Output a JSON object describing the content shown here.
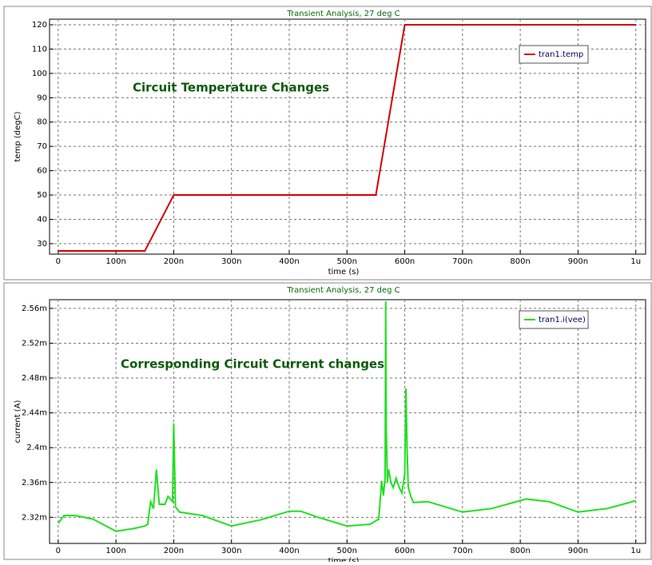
{
  "chart_data": [
    {
      "type": "line",
      "title": "Transient Analysis, 27 deg C",
      "annotation": "Circuit Temperature Changes",
      "xlabel": "time (s)",
      "ylabel": "temp (degC)",
      "grid": true,
      "legend": "upper-right",
      "xlim": [
        -1.5e-08,
        1.017e-06
      ],
      "ylim": [
        25.7,
        122.3
      ],
      "xticks": [
        0,
        {
          "value": 1e-07,
          "label": "100n"
        },
        {
          "value": 2e-07,
          "label": "200n"
        },
        {
          "value": 3e-07,
          "label": "300n"
        },
        {
          "value": 4e-07,
          "label": "400n"
        },
        {
          "value": 5e-07,
          "label": "500n"
        },
        {
          "value": 6e-07,
          "label": "600n"
        },
        {
          "value": 7e-07,
          "label": "700n"
        },
        {
          "value": 8e-07,
          "label": "800n"
        },
        {
          "value": 9e-07,
          "label": "900n"
        },
        {
          "value": 1e-06,
          "label": "1u"
        }
      ],
      "yticks": [
        30,
        40,
        50,
        60,
        70,
        80,
        90,
        100,
        110,
        120
      ],
      "x": [
        0,
        1.5e-07,
        2e-07,
        5.5e-07,
        6e-07,
        1e-06
      ],
      "series": [
        {
          "name": "tran1.temp",
          "color": "#d40000",
          "values": [
            27,
            27,
            50,
            50,
            120,
            120
          ]
        }
      ]
    },
    {
      "type": "line",
      "title": "Transient Analysis, 27 deg C",
      "annotation": "Corresponding Circuit Current changes",
      "xlabel": "time (s)",
      "ylabel": "current (A)",
      "grid": true,
      "legend": "upper-right",
      "xlim": [
        -1.5e-08,
        1.017e-06
      ],
      "ylim": [
        0.00229,
        0.00257
      ],
      "xticks": [
        0,
        {
          "value": 1e-07,
          "label": "100n"
        },
        {
          "value": 2e-07,
          "label": "200n"
        },
        {
          "value": 3e-07,
          "label": "300n"
        },
        {
          "value": 4e-07,
          "label": "400n"
        },
        {
          "value": 5e-07,
          "label": "500n"
        },
        {
          "value": 6e-07,
          "label": "600n"
        },
        {
          "value": 7e-07,
          "label": "700n"
        },
        {
          "value": 8e-07,
          "label": "800n"
        },
        {
          "value": 9e-07,
          "label": "900n"
        },
        {
          "value": 1e-06,
          "label": "1u"
        }
      ],
      "yticks": [
        {
          "value": 0.00232,
          "label": "2.32m"
        },
        {
          "value": 0.00236,
          "label": "2.36m"
        },
        {
          "value": 0.0024,
          "label": "2.4m"
        },
        {
          "value": 0.00244,
          "label": "2.44m"
        },
        {
          "value": 0.00248,
          "label": "2.48m"
        },
        {
          "value": 0.00252,
          "label": "2.52m"
        },
        {
          "value": 0.00256,
          "label": "2.56m"
        }
      ],
      "x": [
        0,
        1e-08,
        3e-08,
        6e-08,
        1e-07,
        1.3e-07,
        1.5e-07,
        1.55e-07,
        1.6e-07,
        1.65e-07,
        1.7e-07,
        1.75e-07,
        1.85e-07,
        1.9e-07,
        1.98e-07,
        2e-07,
        2.03e-07,
        2.1e-07,
        2.5e-07,
        3e-07,
        3.5e-07,
        4e-07,
        4.2e-07,
        4.5e-07,
        5e-07,
        5.4e-07,
        5.55e-07,
        5.6e-07,
        5.63e-07,
        5.66e-07,
        5.67e-07,
        5.68e-07,
        5.7e-07,
        5.72e-07,
        5.76e-07,
        5.8e-07,
        5.85e-07,
        5.9e-07,
        5.95e-07,
        6e-07,
        6.02e-07,
        6.04e-07,
        6.06e-07,
        6.1e-07,
        6.15e-07,
        6.4e-07,
        7e-07,
        7.5e-07,
        8.1e-07,
        8.5e-07,
        9e-07,
        9.5e-07,
        1e-06
      ],
      "series": [
        {
          "name": "tran1.i(vee)",
          "color": "#22e022",
          "values": [
            0.002313,
            0.002322,
            0.002322,
            0.002318,
            0.002304,
            0.002307,
            0.00231,
            0.002312,
            0.002338,
            0.00233,
            0.002375,
            0.002335,
            0.002335,
            0.002344,
            0.002338,
            0.002428,
            0.002332,
            0.002326,
            0.002322,
            0.00231,
            0.002317,
            0.002327,
            0.002327,
            0.00232,
            0.00231,
            0.002312,
            0.002318,
            0.002362,
            0.002345,
            0.002365,
            0.002568,
            0.00242,
            0.00236,
            0.002375,
            0.00236,
            0.002354,
            0.002365,
            0.002355,
            0.002348,
            0.00237,
            0.002468,
            0.0024,
            0.002355,
            0.002345,
            0.002337,
            0.002338,
            0.002326,
            0.00233,
            0.002341,
            0.002338,
            0.002326,
            0.00233,
            0.002339
          ]
        }
      ]
    }
  ]
}
